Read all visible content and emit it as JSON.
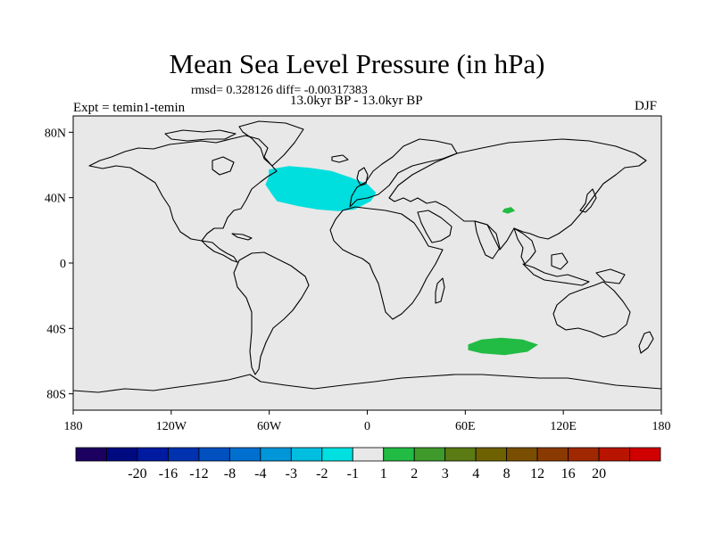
{
  "title": "Mean Sea Level Pressure (in hPa)",
  "stats": "rmsd= 0.328126 diff= -0.00317383",
  "experiment": "Expt = temin1-temin",
  "period": "13.0kyr BP - 13.0kyr BP",
  "season": "DJF",
  "map": {
    "projection": "cylindrical-equidistant",
    "lon_range": [
      -180,
      180
    ],
    "lat_range": [
      -90,
      90
    ],
    "background_color": "#e8e8e8",
    "x_tick_labels": [
      {
        "lon": -180,
        "label": "180"
      },
      {
        "lon": -120,
        "label": "120W"
      },
      {
        "lon": -60,
        "label": "60W"
      },
      {
        "lon": 0,
        "label": "0"
      },
      {
        "lon": 60,
        "label": "60E"
      },
      {
        "lon": 120,
        "label": "120E"
      },
      {
        "lon": 180,
        "label": "180"
      }
    ],
    "y_tick_labels": [
      {
        "lat": 80,
        "label": "80N"
      },
      {
        "lat": 40,
        "label": "40N"
      },
      {
        "lat": 0,
        "label": "0"
      },
      {
        "lat": -40,
        "label": "40S"
      },
      {
        "lat": -80,
        "label": "80S"
      }
    ],
    "anomaly_regions": [
      {
        "name": "north-atlantic-low",
        "level": "-2 to -1",
        "color": "#00dede",
        "outline": [
          [
            -60,
            57
          ],
          [
            -48,
            59
          ],
          [
            -35,
            58
          ],
          [
            -22,
            56
          ],
          [
            -10,
            52
          ],
          [
            0,
            48
          ],
          [
            5,
            43
          ],
          [
            2,
            38
          ],
          [
            -8,
            33
          ],
          [
            -18,
            32
          ],
          [
            -30,
            33
          ],
          [
            -42,
            35
          ],
          [
            -55,
            38
          ],
          [
            -58,
            42
          ],
          [
            -62,
            48
          ],
          [
            -60,
            53
          ]
        ]
      },
      {
        "name": "tibet-high",
        "level": "1 to 2",
        "color": "#22bb44",
        "outline": [
          [
            84,
            33
          ],
          [
            88,
            34
          ],
          [
            90,
            32
          ],
          [
            86,
            30.5
          ],
          [
            83,
            31.5
          ]
        ]
      },
      {
        "name": "southern-ocean-high",
        "level": "1 to 2",
        "color": "#22bb44",
        "outline": [
          [
            62,
            -50
          ],
          [
            70,
            -47
          ],
          [
            82,
            -46
          ],
          [
            95,
            -47
          ],
          [
            104,
            -50
          ],
          [
            98,
            -54
          ],
          [
            84,
            -56
          ],
          [
            70,
            -55
          ],
          [
            62,
            -53
          ]
        ]
      }
    ]
  },
  "colorbar": {
    "colors": [
      "#1b0060",
      "#000a80",
      "#001aa0",
      "#0032b0",
      "#0050c0",
      "#0070d0",
      "#0096d8",
      "#00bee0",
      "#00e0e0",
      "#e8e8e8",
      "#22bb44",
      "#3e9a2a",
      "#5a7a14",
      "#6e6200",
      "#7a4e00",
      "#8a3a00",
      "#a02800",
      "#b81400",
      "#d00000"
    ],
    "labels": [
      "-20",
      "-16",
      "-12",
      "-8",
      "-4",
      "-3",
      "-2",
      "-1",
      "1",
      "2",
      "3",
      "4",
      "8",
      "12",
      "16",
      "20"
    ]
  }
}
